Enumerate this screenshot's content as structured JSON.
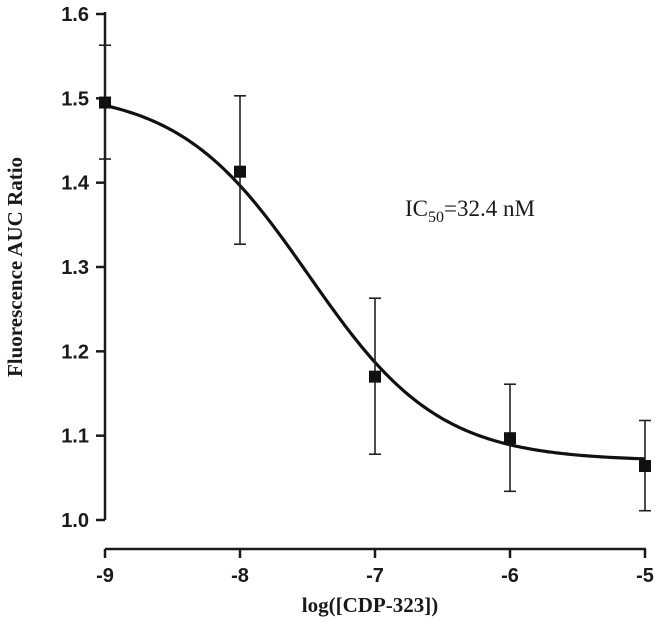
{
  "chart_data": {
    "type": "scatter",
    "title": "",
    "xlabel": "log([CDP-323])",
    "ylabel": "Fluorescence AUC Ratio",
    "xlim": [
      -9,
      -5
    ],
    "ylim": [
      1.0,
      1.6
    ],
    "x_ticks": [
      -9,
      -8,
      -7,
      -6,
      -5
    ],
    "x_tick_labels": [
      "-9",
      "-8",
      "-7",
      "-6",
      "-5"
    ],
    "y_ticks": [
      1.0,
      1.1,
      1.2,
      1.3,
      1.4,
      1.5,
      1.6
    ],
    "y_tick_labels": [
      "1.0",
      "1.1",
      "1.2",
      "1.3",
      "1.4",
      "1.5",
      "1.6"
    ],
    "grid": false,
    "series": [
      {
        "x": [
          -9,
          -8,
          -7,
          -6,
          -5
        ],
        "y": [
          1.495,
          1.413,
          1.17,
          1.097,
          1.064
        ],
        "error_high": [
          1.563,
          1.503,
          1.263,
          1.161,
          1.118
        ],
        "error_low": [
          1.428,
          1.327,
          1.078,
          1.034,
          1.011
        ]
      }
    ],
    "fit": {
      "model": "sigmoidal dose-response",
      "top": 1.51,
      "bottom": 1.07,
      "log_ic50": -7.49,
      "hill_slope": 0.9
    },
    "annotation": {
      "prefix": "IC",
      "subscript": "50",
      "suffix": "=32.4 nM"
    }
  }
}
